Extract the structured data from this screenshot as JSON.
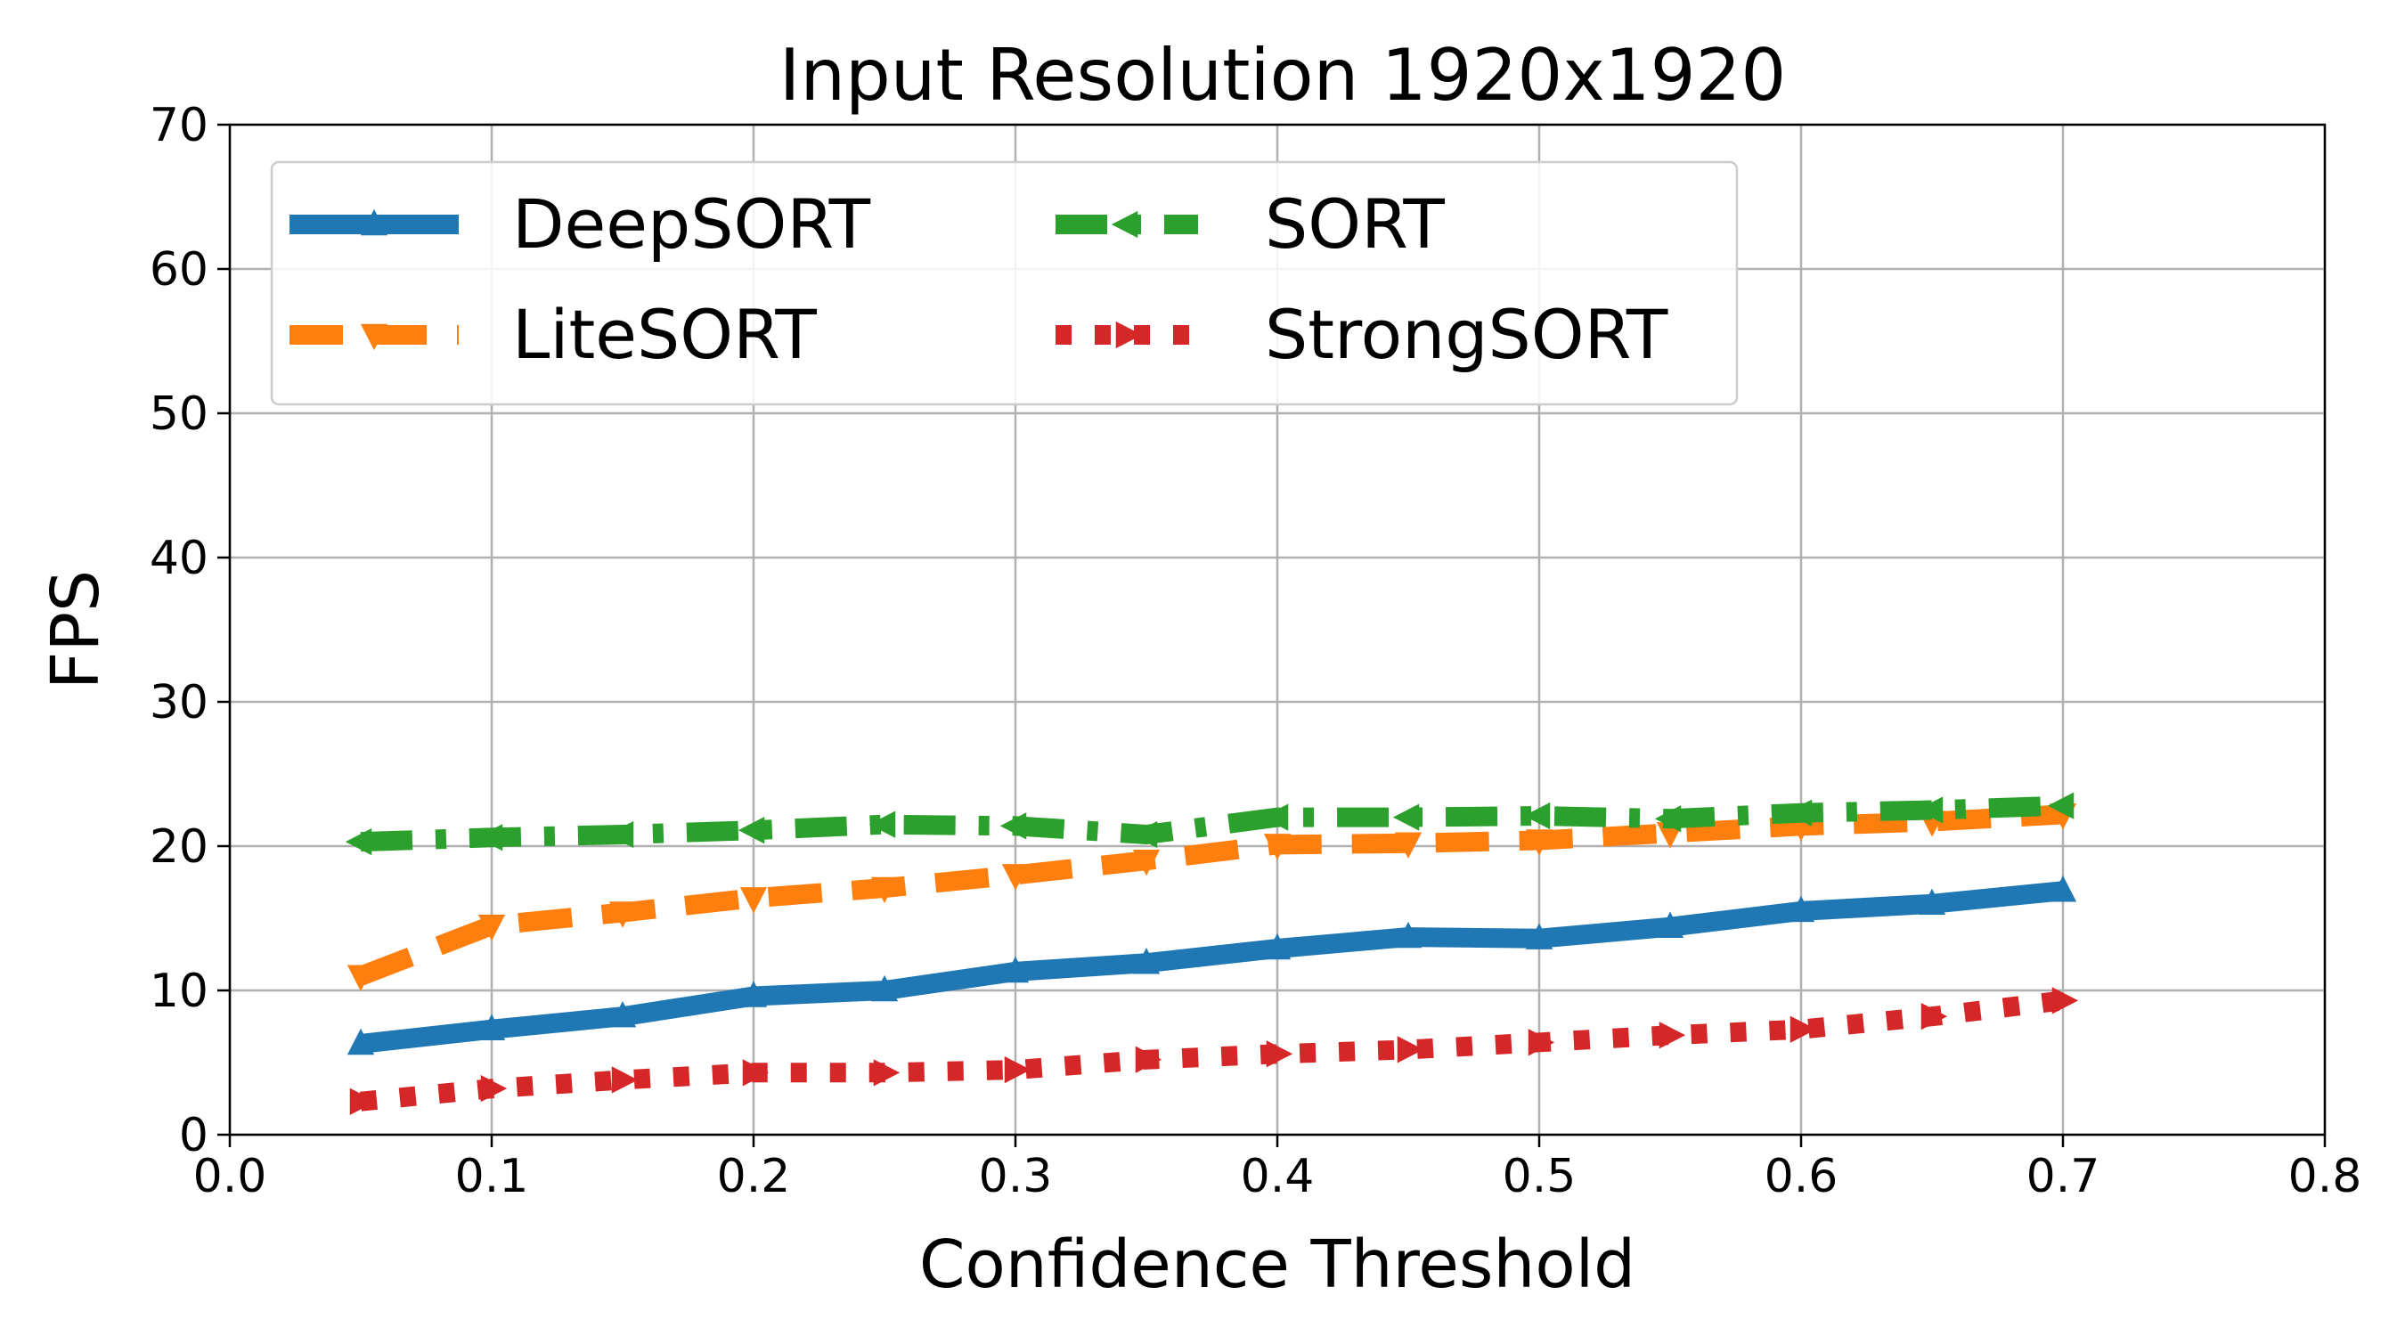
{
  "chart_data": {
    "type": "line",
    "title": "Input Resolution 1920x1920",
    "xlabel": "Confidence Threshold",
    "ylabel": "FPS",
    "xlim": [
      0.0,
      0.8
    ],
    "ylim": [
      0,
      70
    ],
    "xticks": [
      "0.0",
      "0.1",
      "0.2",
      "0.3",
      "0.4",
      "0.5",
      "0.6",
      "0.7",
      "0.8"
    ],
    "yticks": [
      "0",
      "10",
      "20",
      "30",
      "40",
      "50",
      "60",
      "70"
    ],
    "grid": true,
    "legend_position": "top-left",
    "x": [
      0.05,
      0.1,
      0.15,
      0.2,
      0.25,
      0.3,
      0.35,
      0.4,
      0.45,
      0.5,
      0.55,
      0.6,
      0.65,
      0.7
    ],
    "series": [
      {
        "name": "DeepSORT",
        "color": "#1f77b4",
        "line_style": "solid",
        "marker": "triangle-up",
        "values": [
          6.3,
          7.3,
          8.2,
          9.6,
          10.0,
          11.3,
          11.9,
          12.9,
          13.7,
          13.6,
          14.4,
          15.5,
          16.0,
          16.9
        ]
      },
      {
        "name": "LiteSORT",
        "color": "#ff7f0e",
        "line_style": "dashed",
        "marker": "triangle-down",
        "values": [
          11.0,
          14.5,
          15.4,
          16.4,
          17.1,
          18.0,
          19.0,
          20.1,
          20.2,
          20.4,
          20.9,
          21.4,
          21.7,
          22.2
        ]
      },
      {
        "name": "SORT",
        "color": "#2ca02c",
        "line_style": "dashdot",
        "marker": "triangle-left",
        "values": [
          20.3,
          20.6,
          20.8,
          21.1,
          21.5,
          21.4,
          20.8,
          22.0,
          22.0,
          22.1,
          21.9,
          22.3,
          22.5,
          22.8
        ]
      },
      {
        "name": "StrongSORT",
        "color": "#d62728",
        "line_style": "dotted",
        "marker": "triangle-right",
        "values": [
          2.3,
          3.2,
          3.8,
          4.3,
          4.3,
          4.5,
          5.2,
          5.6,
          5.9,
          6.4,
          6.9,
          7.3,
          8.2,
          9.3
        ]
      }
    ]
  }
}
